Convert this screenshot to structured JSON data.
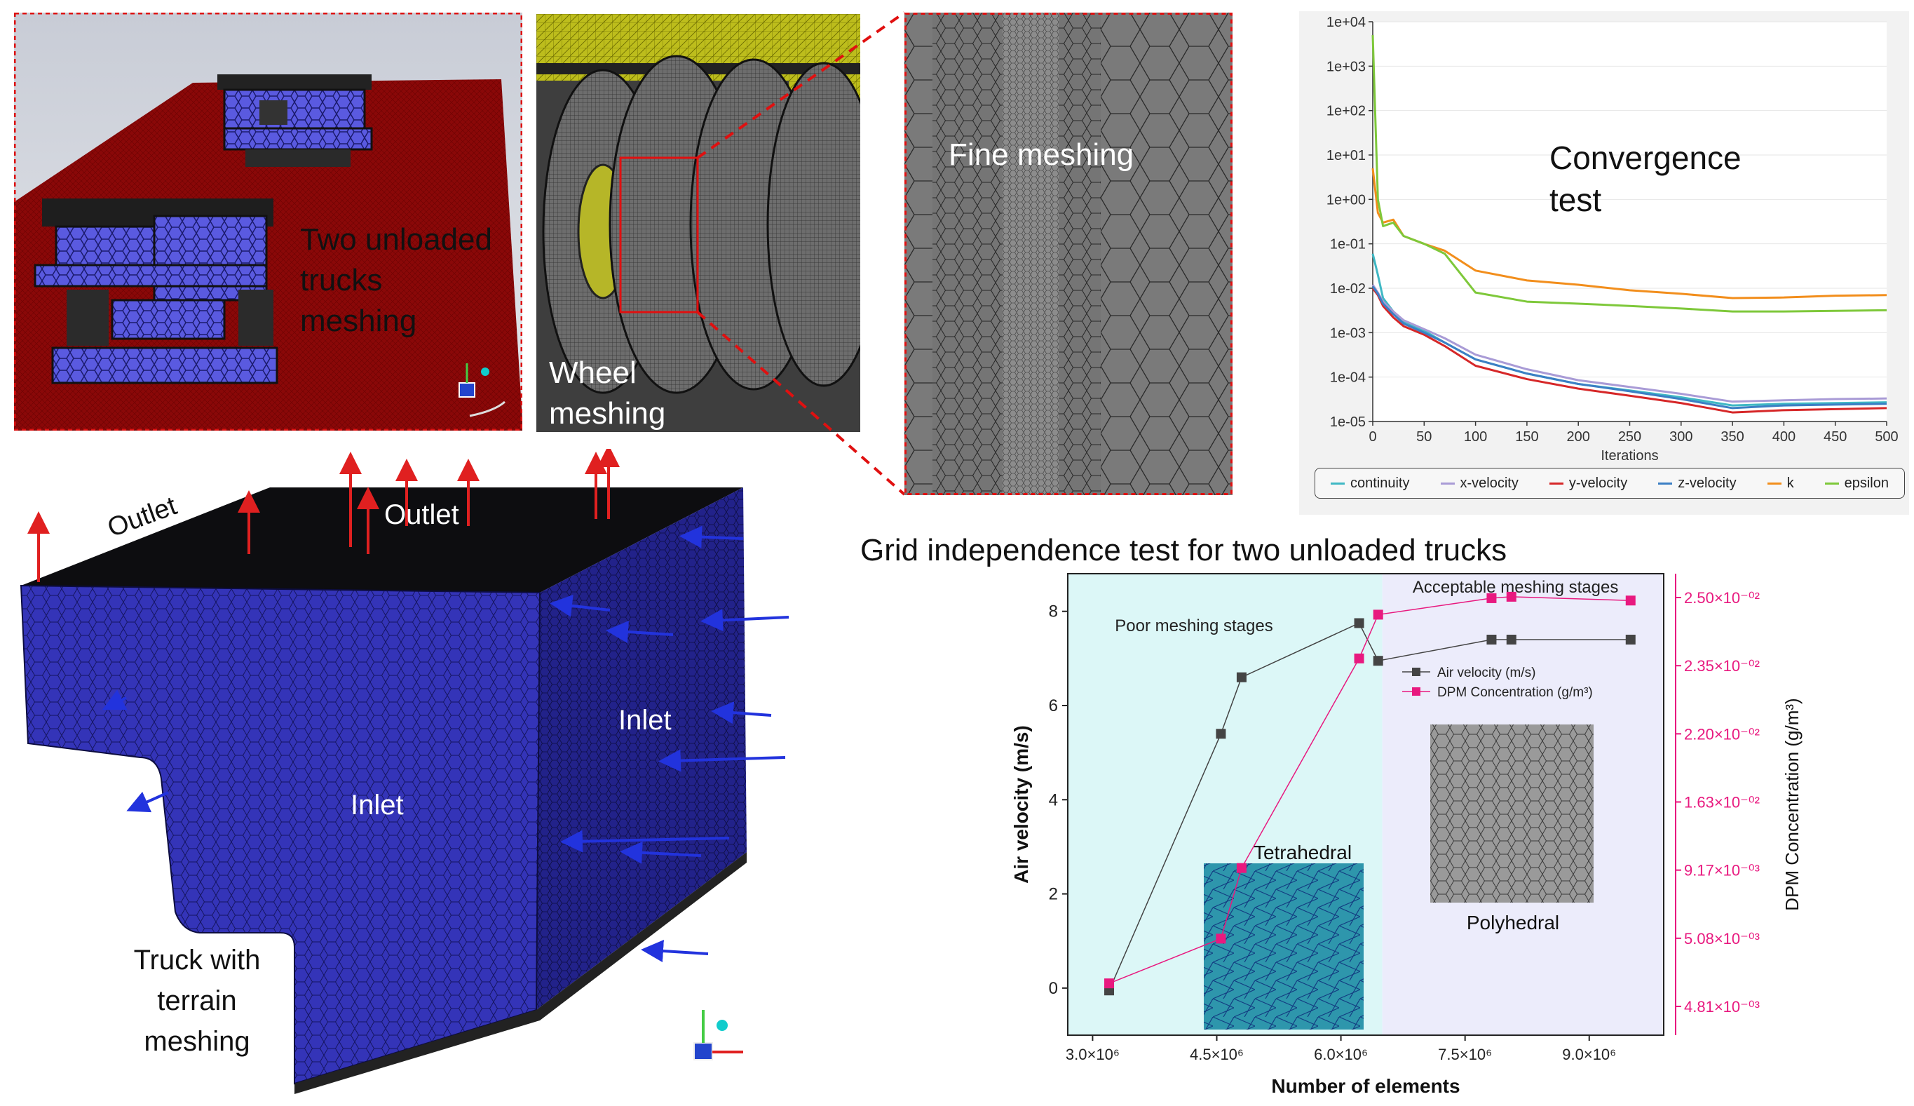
{
  "panels": {
    "trucks": {
      "label_line1": "Two unloaded",
      "label_line2": "trucks",
      "label_line3": "meshing"
    },
    "wheel": {
      "label_line1": "Wheel",
      "label_line2": "meshing"
    },
    "fine": {
      "label": "Fine meshing"
    },
    "terrain": {
      "outlet_left": "Outlet",
      "outlet_top": "Outlet",
      "inlet_right": "Inlet",
      "inlet_front": "Inlet",
      "label_line1": "Truck with",
      "label_line2": "terrain",
      "label_line3": "meshing"
    }
  },
  "convergence": {
    "title_line1": "Convergence",
    "title_line2": "test",
    "xlabel": "Iterations",
    "legend": [
      {
        "name": "continuity",
        "color": "#3fb8c4"
      },
      {
        "name": "x-velocity",
        "color": "#a99bd6"
      },
      {
        "name": "y-velocity",
        "color": "#d62728"
      },
      {
        "name": "z-velocity",
        "color": "#3b7fc4"
      },
      {
        "name": "k",
        "color": "#f28e1c"
      },
      {
        "name": "epsilon",
        "color": "#7ec83a"
      }
    ]
  },
  "grid_test": {
    "title": "Grid independence test for two unloaded trucks",
    "region_poor": "Poor meshing stages",
    "region_good": "Acceptable meshing stages",
    "inset_tetra": "Tetrahedral",
    "inset_poly": "Polyhedral",
    "xlabel": "Number of elements",
    "ylabel_left": "Air velocity (m/s)",
    "ylabel_right": "DPM Concentration (g/m³)",
    "legend_air": "Air velocity (m/s)",
    "legend_dpm": "DPM Concentration (g/m³)"
  },
  "chart_data": [
    {
      "type": "line",
      "title": "Convergence test",
      "xlabel": "Iterations",
      "ylabel": "",
      "yscale": "log",
      "xlim": [
        0,
        500
      ],
      "ylim": [
        1e-05,
        10000
      ],
      "x_ticks": [
        "0",
        "50",
        "100",
        "150",
        "200",
        "250",
        "300",
        "350",
        "400",
        "450",
        "500"
      ],
      "y_ticks": [
        "1e+04",
        "1e+03",
        "1e+02",
        "1e+01",
        "1e+00",
        "1e-01",
        "1e-02",
        "1e-03",
        "1e-04",
        "1e-05"
      ],
      "x": [
        0,
        5,
        10,
        20,
        30,
        50,
        70,
        100,
        150,
        200,
        250,
        300,
        350,
        400,
        450,
        500
      ],
      "series": [
        {
          "name": "continuity",
          "values": [
            0.06,
            0.02,
            0.006,
            0.003,
            0.0018,
            0.0011,
            0.0006,
            0.00025,
            0.00012,
            7e-05,
            5e-05,
            3.5e-05,
            2.3e-05,
            2.5e-05,
            2.6e-05,
            2.7e-05
          ]
        },
        {
          "name": "x-velocity",
          "values": [
            0.012,
            0.008,
            0.005,
            0.003,
            0.0019,
            0.0012,
            0.00075,
            0.00032,
            0.00015,
            8.5e-05,
            6e-05,
            4.2e-05,
            2.8e-05,
            3e-05,
            3.2e-05,
            3.3e-05
          ]
        },
        {
          "name": "y-velocity",
          "values": [
            0.01,
            0.007,
            0.004,
            0.0022,
            0.0014,
            0.0009,
            0.0005,
            0.00018,
            9e-05,
            5.5e-05,
            3.8e-05,
            2.6e-05,
            1.6e-05,
            1.8e-05,
            1.9e-05,
            2e-05
          ]
        },
        {
          "name": "z-velocity",
          "values": [
            0.011,
            0.0075,
            0.0045,
            0.0026,
            0.0016,
            0.001,
            0.0006,
            0.00025,
            0.00012,
            7e-05,
            4.8e-05,
            3.2e-05,
            2e-05,
            2.3e-05,
            2.4e-05,
            2.5e-05
          ]
        },
        {
          "name": "k",
          "values": [
            5,
            0.5,
            0.3,
            0.35,
            0.15,
            0.1,
            0.07,
            0.025,
            0.015,
            0.012,
            0.009,
            0.0075,
            0.006,
            0.0062,
            0.0068,
            0.007
          ]
        },
        {
          "name": "epsilon",
          "values": [
            5000,
            1,
            0.25,
            0.3,
            0.15,
            0.1,
            0.06,
            0.008,
            0.005,
            0.0045,
            0.004,
            0.0035,
            0.003,
            0.003,
            0.0031,
            0.0032
          ]
        }
      ]
    },
    {
      "type": "line",
      "title": "Grid independence test for two unloaded trucks",
      "xlabel": "Number of elements",
      "ylabel": "Air velocity (m/s)",
      "ylabel_right": "DPM Concentration (g/m³)",
      "xlim": [
        2700000,
        9900000
      ],
      "ylim": [
        -1,
        8.8
      ],
      "x_ticks": [
        {
          "value": 3000000,
          "label": "3.0×10⁶"
        },
        {
          "value": 4500000,
          "label": "4.5×10⁶"
        },
        {
          "value": 6000000,
          "label": "6.0×10⁶"
        },
        {
          "value": 7500000,
          "label": "7.5×10⁶"
        },
        {
          "value": 9000000,
          "label": "9.0×10⁶"
        }
      ],
      "y_ticks": [
        "0",
        "2",
        "4",
        "6",
        "8"
      ],
      "y_right_ticks": [
        "2.50×10⁻⁰²",
        "2.35×10⁻⁰²",
        "2.20×10⁻⁰²",
        "1.63×10⁻⁰²",
        "9.17×10⁻⁰³",
        "5.08×10⁻⁰³",
        "4.81×10⁻⁰³"
      ],
      "region_split_x": 6500000,
      "series": [
        {
          "name": "Air velocity (m/s)",
          "color": "#444444",
          "marker": "square",
          "x": [
            3200000,
            4550000,
            4800000,
            6220000,
            6450000,
            7820000,
            8060000,
            9500000
          ],
          "values": [
            -0.05,
            5.4,
            6.6,
            7.75,
            6.95,
            7.4,
            7.4,
            7.4
          ]
        },
        {
          "name": "DPM Concentration (g/m³)",
          "color": "#e8197f",
          "marker": "square",
          "x": [
            3200000,
            4550000,
            4800000,
            6220000,
            6450000,
            7820000,
            8060000,
            9500000
          ],
          "values_axis_units": [
            0.1,
            1.05,
            2.55,
            7.0,
            7.93,
            8.28,
            8.31,
            8.23
          ]
        }
      ]
    }
  ]
}
